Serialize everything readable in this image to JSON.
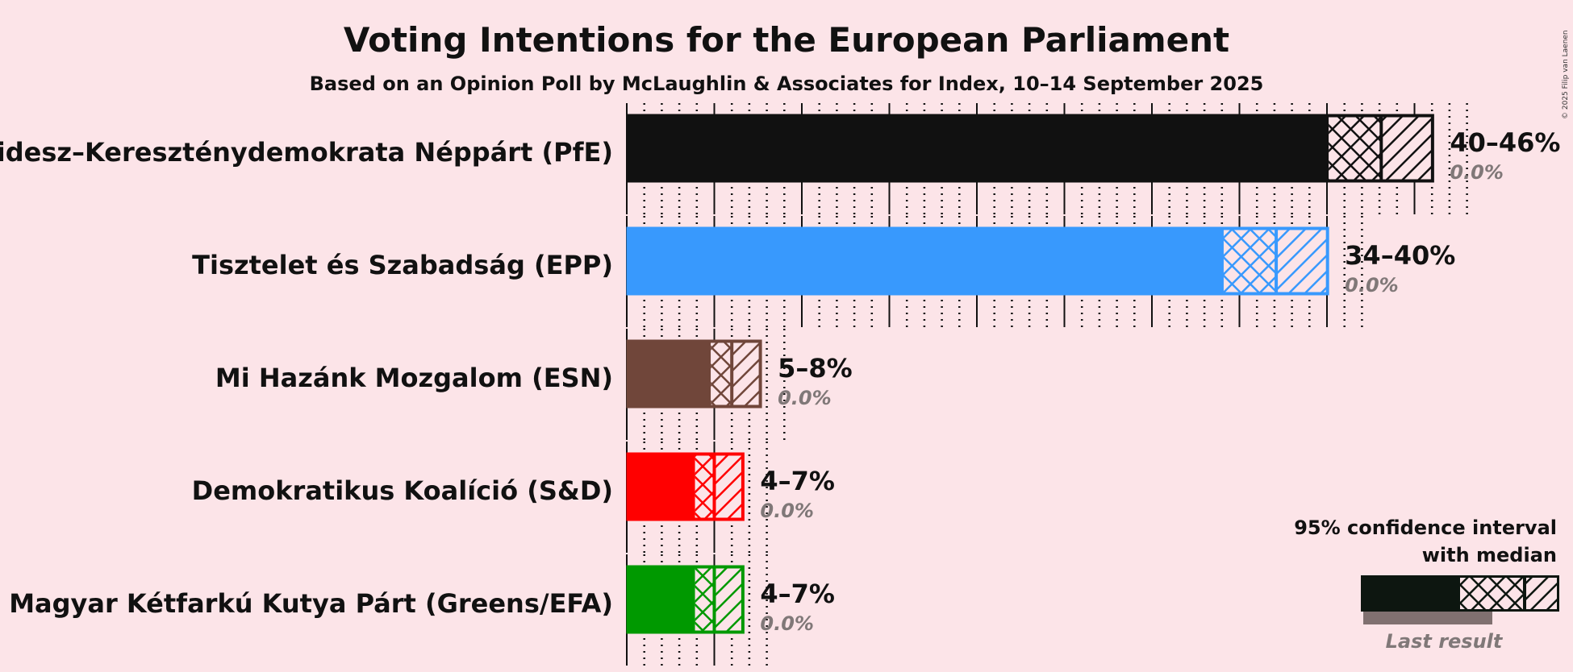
{
  "chart_data": {
    "type": "bar",
    "title": "Voting Intentions for the European Parliament",
    "subtitle": "Based on an Opinion Poll by McLaughlin & Associates for Index, 10–14 September 2025",
    "copyright": "© 2025 Filip van Laenen",
    "xlim": [
      0,
      47
    ],
    "major_tick_step": 5,
    "minor_tick_step": 1,
    "grid": true,
    "categories": [
      "Fidesz–Kereszténydemokrata Néppárt (PfE)",
      "Tisztelet és Szabadság (EPP)",
      "Mi Hazánk Mozgalom (ESN)",
      "Demokratikus Koalíció (S&D)",
      "Magyar Kétfarkú Kutya Párt (Greens/EFA)"
    ],
    "series": [
      {
        "name": "Fidesz–Kereszténydemokrata Néppárt (PfE)",
        "color": "#111111",
        "ci_low": 40.1,
        "median": 43.1,
        "ci_high": 46.1,
        "range_label": "40–46%",
        "last_result": 0.0,
        "last_result_label": "0.0%"
      },
      {
        "name": "Tisztelet és Szabadság (EPP)",
        "color": "#3899fd",
        "ci_low": 34.1,
        "median": 37.1,
        "ci_high": 40.1,
        "range_label": "34–40%",
        "last_result": 0.0,
        "last_result_label": "0.0%"
      },
      {
        "name": "Mi Hazánk Mozgalom (ESN)",
        "color": "#70463a",
        "ci_low": 4.8,
        "median": 6.0,
        "ci_high": 7.7,
        "range_label": "5–8%",
        "last_result": 0.0,
        "last_result_label": "0.0%"
      },
      {
        "name": "Demokratikus Koalíció (S&D)",
        "color": "#ff0000",
        "ci_low": 3.9,
        "median": 5.0,
        "ci_high": 6.7,
        "range_label": "4–7%",
        "last_result": 0.0,
        "last_result_label": "0.0%"
      },
      {
        "name": "Magyar Kétfarkú Kutya Párt (Greens/EFA)",
        "color": "#009900",
        "ci_low": 3.9,
        "median": 5.0,
        "ci_high": 6.7,
        "range_label": "4–7%",
        "last_result": 0.0,
        "last_result_label": "0.0%"
      }
    ],
    "legend": {
      "position": "bottom-right",
      "title_line1": "95% confidence interval",
      "title_line2": "with median",
      "last_result_label": "Last result",
      "color": "#0d1610",
      "last_color": "#807070"
    }
  }
}
